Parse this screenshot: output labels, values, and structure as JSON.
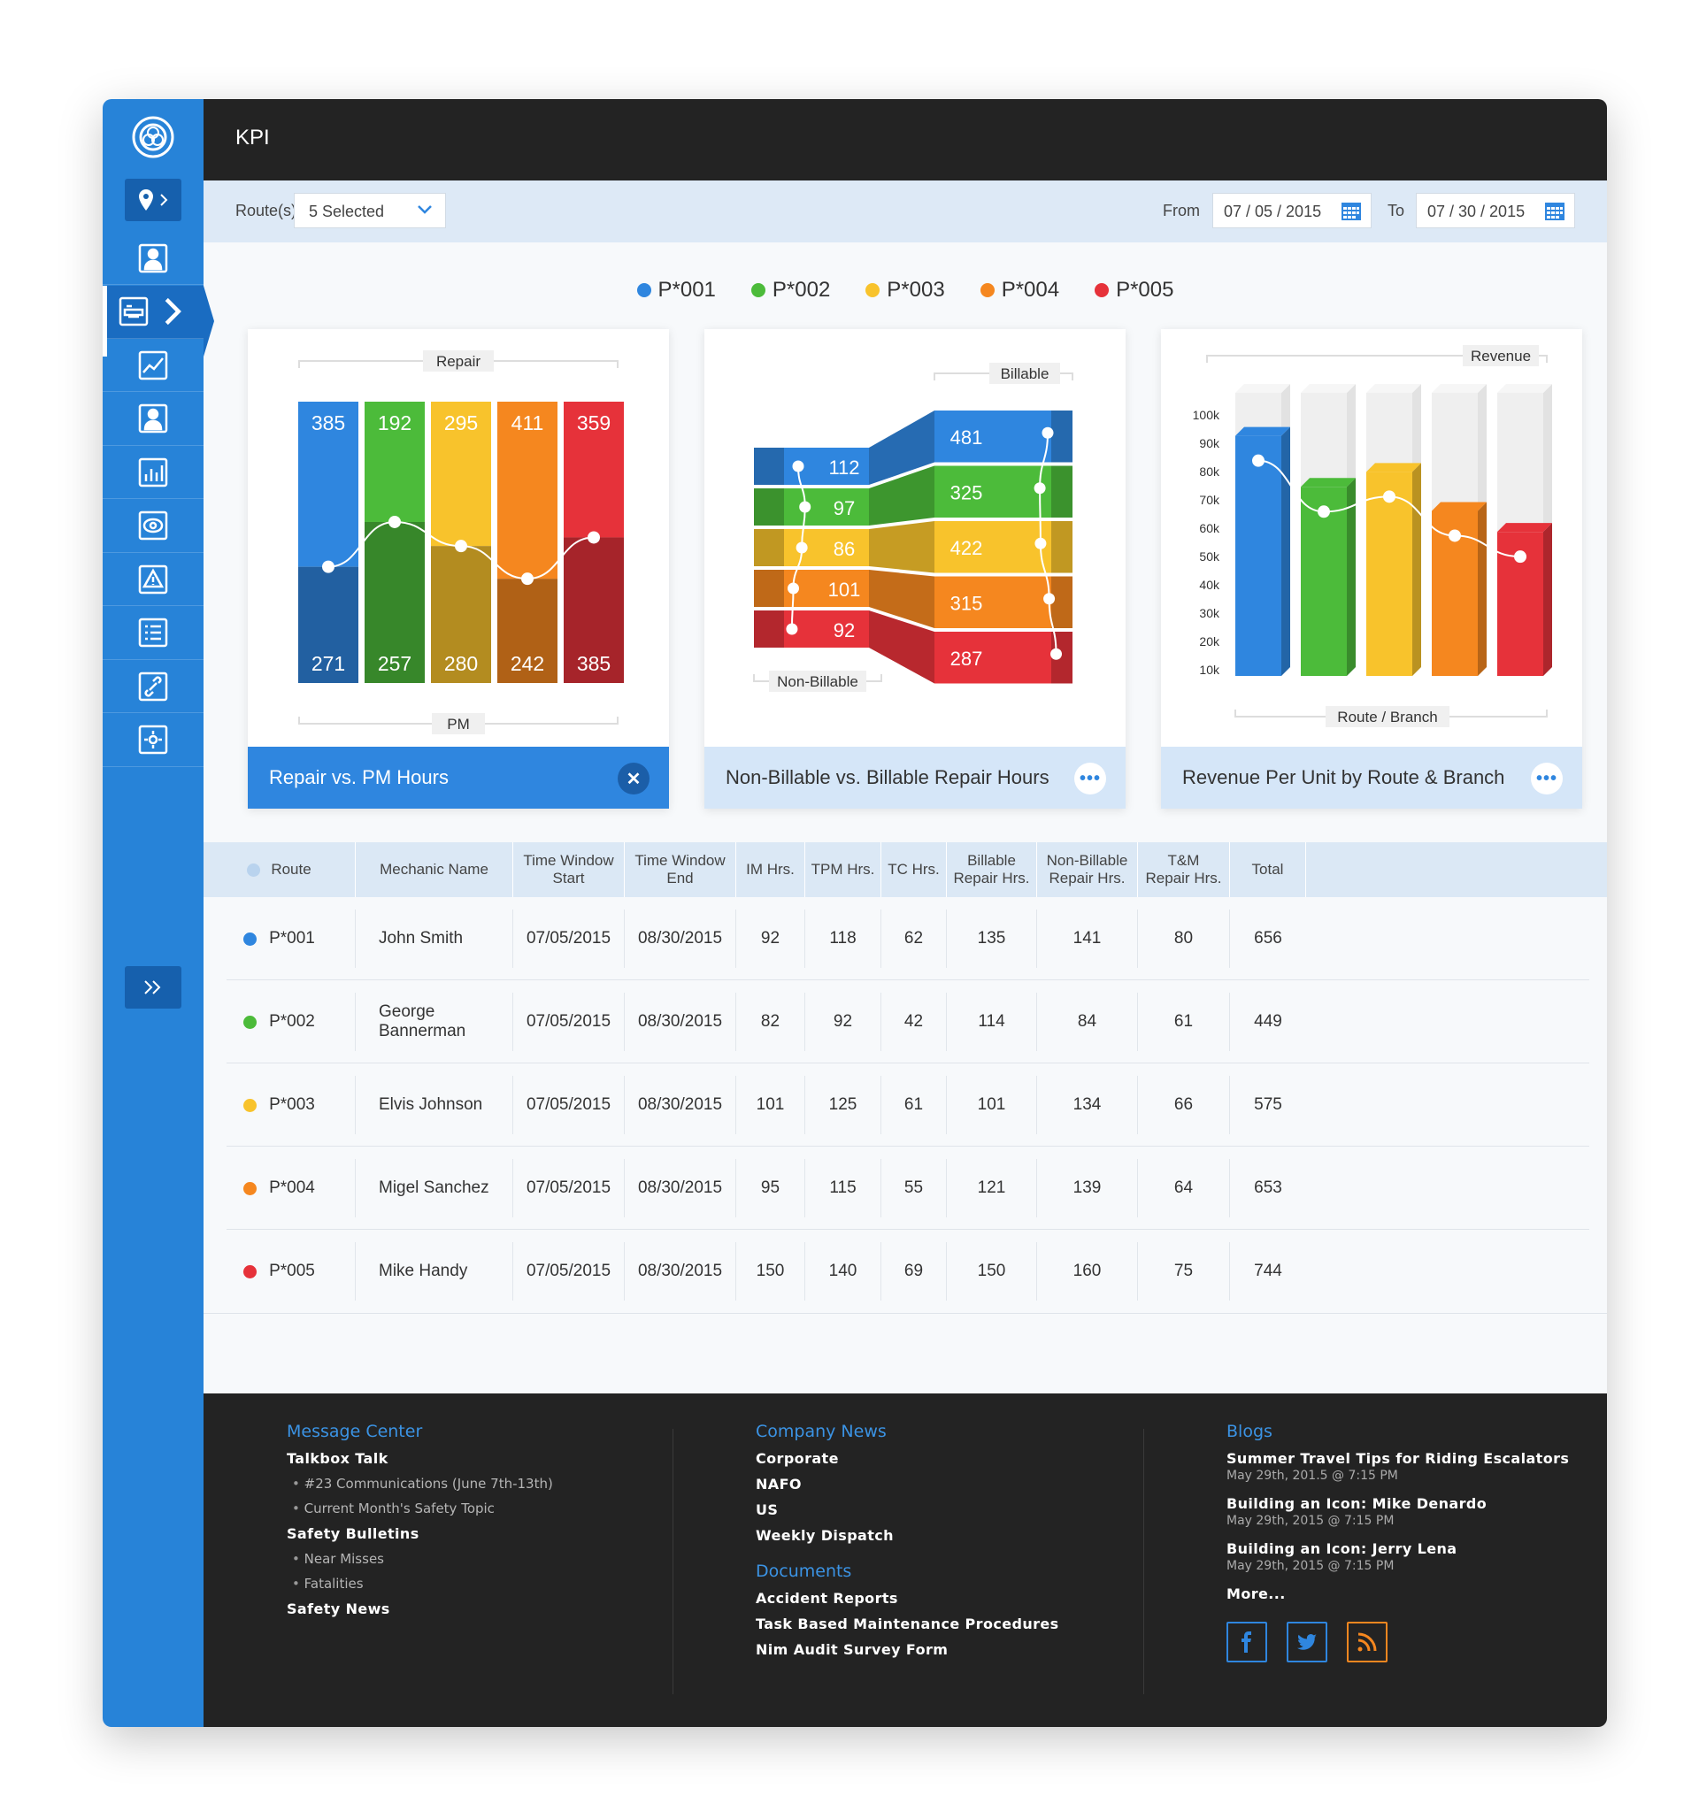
{
  "header": {
    "title": "KPI"
  },
  "filters": {
    "routes_label": "Route(s)",
    "routes_value": "5 Selected",
    "from_label": "From",
    "from_value": "07 / 05 / 2015",
    "to_label": "To",
    "to_value": "07 / 30 / 2015"
  },
  "legend": [
    {
      "label": "P*001",
      "color": "#2f86df"
    },
    {
      "label": "P*002",
      "color": "#4cbb3a"
    },
    {
      "label": "P*003",
      "color": "#f8c32c"
    },
    {
      "label": "P*004",
      "color": "#f5871f"
    },
    {
      "label": "P*005",
      "color": "#e6323a"
    }
  ],
  "cards": [
    {
      "title": "Repair vs. PM Hours",
      "button": "✕"
    },
    {
      "title": "Non-Billable vs. Billable Repair Hours",
      "button": "•••"
    },
    {
      "title": "Revenue Per Unit by Route & Branch",
      "button": "•••"
    }
  ],
  "chart_data": [
    {
      "type": "bar",
      "title": "Repair vs. PM Hours",
      "top_label": "Repair",
      "bottom_label": "PM",
      "categories": [
        "P*001",
        "P*002",
        "P*003",
        "P*004",
        "P*005"
      ],
      "series": [
        {
          "name": "Repair",
          "values": [
            385,
            192,
            295,
            411,
            359
          ]
        },
        {
          "name": "PM",
          "values": [
            271,
            257,
            280,
            242,
            385
          ]
        }
      ]
    },
    {
      "type": "bar",
      "title": "Non-Billable vs. Billable Repair Hours",
      "top_label": "Billable",
      "bottom_label": "Non-Billable",
      "categories": [
        "P*001",
        "P*002",
        "P*003",
        "P*004",
        "P*005"
      ],
      "series": [
        {
          "name": "Non-Billable",
          "values": [
            112,
            97,
            86,
            101,
            92
          ]
        },
        {
          "name": "Billable",
          "values": [
            481,
            325,
            422,
            315,
            287
          ]
        }
      ]
    },
    {
      "type": "bar",
      "title": "Revenue Per Unit by Route & Branch",
      "top_label": "Revenue",
      "xlabel": "Route / Branch",
      "categories": [
        "P*001",
        "P*002",
        "P*003",
        "P*004",
        "P*005"
      ],
      "values": [
        80000,
        63000,
        68000,
        55000,
        48000
      ],
      "yticks": [
        "10k",
        "20k",
        "30k",
        "40k",
        "50k",
        "60k",
        "70k",
        "80k",
        "90k",
        "100k"
      ],
      "ylim": [
        0,
        100000
      ]
    }
  ],
  "table": {
    "headers": [
      "Route",
      "Mechanic Name",
      "Time Window\nStart",
      "Time Window\nEnd",
      "IM Hrs.",
      "TPM Hrs.",
      "TC Hrs.",
      "Billable\nRepair Hrs.",
      "Non-Billable\nRepair Hrs.",
      "T&M\nRepair Hrs.",
      "Total"
    ],
    "rows": [
      {
        "color": "#2f86df",
        "cells": [
          "P*001",
          "John Smith",
          "07/05/2015",
          "08/30/2015",
          "92",
          "118",
          "62",
          "135",
          "141",
          "80",
          "656"
        ]
      },
      {
        "color": "#4cbb3a",
        "cells": [
          "P*002",
          "George Bannerman",
          "07/05/2015",
          "08/30/2015",
          "82",
          "92",
          "42",
          "114",
          "84",
          "61",
          "449"
        ]
      },
      {
        "color": "#f8c32c",
        "cells": [
          "P*003",
          "Elvis Johnson",
          "07/05/2015",
          "08/30/2015",
          "101",
          "125",
          "61",
          "101",
          "134",
          "66",
          "575"
        ]
      },
      {
        "color": "#f5871f",
        "cells": [
          "P*004",
          "Migel Sanchez",
          "07/05/2015",
          "08/30/2015",
          "95",
          "115",
          "55",
          "121",
          "139",
          "64",
          "653"
        ]
      },
      {
        "color": "#e6323a",
        "cells": [
          "P*005",
          "Mike Handy",
          "07/05/2015",
          "08/30/2015",
          "150",
          "140",
          "69",
          "150",
          "160",
          "75",
          "744"
        ]
      }
    ]
  },
  "footer": {
    "message_center": {
      "title": "Message Center",
      "items": [
        {
          "t": "bold",
          "text": "Talkbox Talk"
        },
        {
          "t": "sub",
          "text": "#23 Communications (June 7th-13th)"
        },
        {
          "t": "sub",
          "text": "Current Month's Safety Topic"
        },
        {
          "t": "bold",
          "text": "Safety Bulletins"
        },
        {
          "t": "sub",
          "text": "Near Misses"
        },
        {
          "t": "sub",
          "text": "Fatalities"
        },
        {
          "t": "bold",
          "text": "Safety News"
        }
      ]
    },
    "company_news": {
      "title": "Company News",
      "items": [
        "Corporate",
        "NAFO",
        "US",
        "Weekly Dispatch"
      ]
    },
    "documents": {
      "title": "Documents",
      "items": [
        "Accident Reports",
        "Task Based Maintenance Procedures",
        "Nim Audit Survey Form"
      ]
    },
    "blogs": {
      "title": "Blogs",
      "items": [
        {
          "title": "Summer Travel Tips for Riding Escalators",
          "date": "May 29th, 201.5 @ 7:15 PM"
        },
        {
          "title": "Building an Icon: Mike Denardo",
          "date": "May 29th, 2015 @ 7:15 PM"
        },
        {
          "title": "Building an Icon: Jerry Lena",
          "date": "May 29th, 2015 @ 7:15 PM"
        }
      ],
      "more": "More..."
    },
    "social": [
      {
        "icon": "facebook-icon",
        "glyph": "f",
        "color": "#2f86df"
      },
      {
        "icon": "twitter-icon",
        "glyph": "t",
        "color": "#2f86df"
      },
      {
        "icon": "rss-icon",
        "glyph": "rss",
        "color": "#f5871f"
      }
    ]
  }
}
